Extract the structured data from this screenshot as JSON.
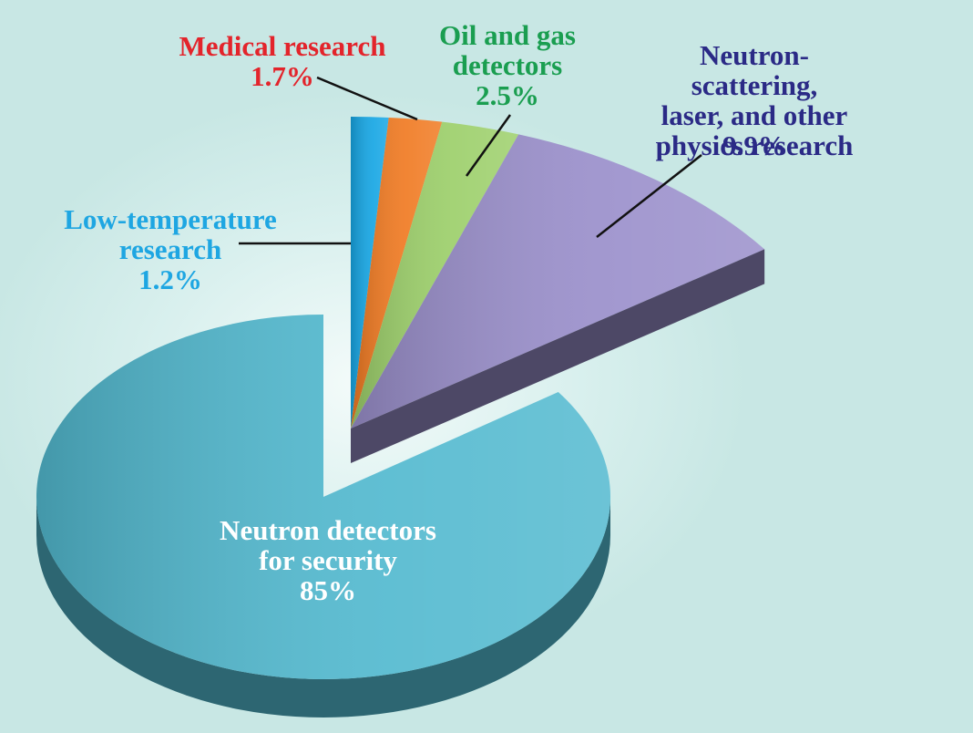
{
  "chart_data": {
    "type": "pie",
    "categories": [
      "Low-temperature\nresearch",
      "Medical research",
      "Oil and gas\ndetectors",
      "Neutron-scattering,\nlaser, and other\nphysics research",
      "Neutron detectors\nfor security"
    ],
    "values": [
      1.2,
      1.7,
      2.5,
      9.9,
      85
    ],
    "value_labels": [
      "1.2%",
      "1.7%",
      "2.5%",
      "9.9%",
      "85%"
    ],
    "colors": [
      "#16a6e4",
      "#f07a22",
      "#9ccf6a",
      "#9a8fcb",
      "#52b9cf"
    ],
    "label_colors": [
      "#1ea6e2",
      "#e3242b",
      "#1a9e50",
      "#2b2a86",
      "#ffffff"
    ]
  }
}
